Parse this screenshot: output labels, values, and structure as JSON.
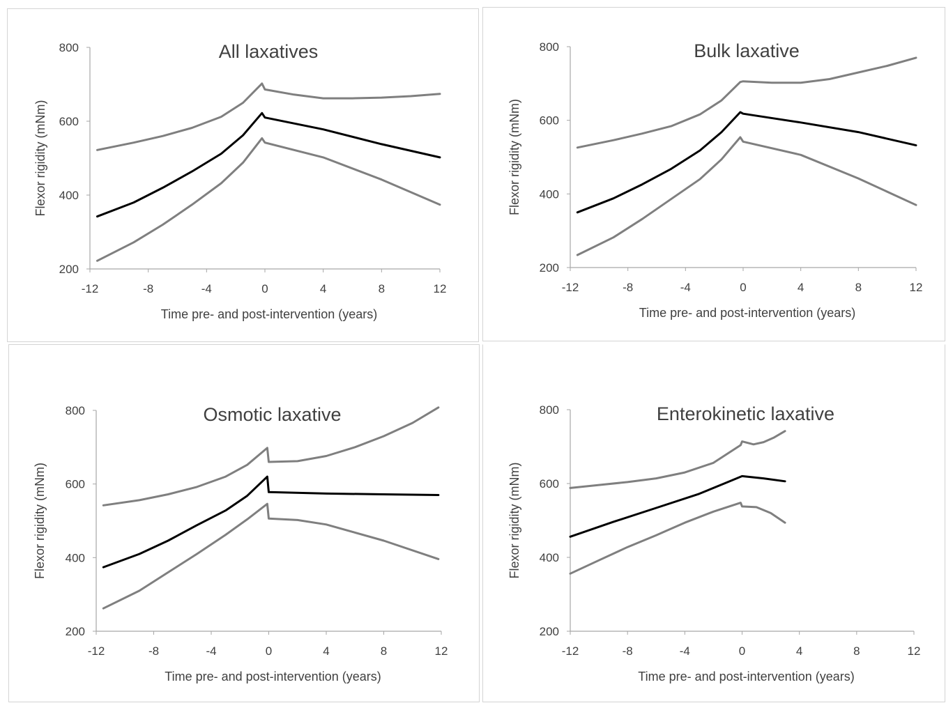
{
  "colors": {
    "mean": "#000000",
    "bounds": "#7f7f7f",
    "axis": "#a6a6a6",
    "text": "#404040"
  },
  "chart_data": [
    {
      "type": "line",
      "title": "All laxatives",
      "xlabel": "Time pre- and post-intervention (years)",
      "ylabel": "Flexor rigidity (mNm)",
      "xlim": [
        -12,
        12
      ],
      "ylim": [
        200,
        800
      ],
      "xticks": [
        "-12",
        "-8",
        "-4",
        "0",
        "4",
        "8",
        "12"
      ],
      "yticks": [
        "200",
        "400",
        "600",
        "800"
      ],
      "grid": false,
      "series": [
        {
          "role": "upper",
          "points": [
            [
              -11.5,
              522
            ],
            [
              -9,
              542
            ],
            [
              -7,
              560
            ],
            [
              -5,
              582
            ],
            [
              -3,
              612
            ],
            [
              -1.5,
              650
            ],
            [
              -0.2,
              702
            ],
            [
              0,
              686
            ],
            [
              2,
              672
            ],
            [
              4,
              662
            ],
            [
              6,
              662
            ],
            [
              8,
              664
            ],
            [
              10,
              668
            ],
            [
              12,
              674
            ]
          ]
        },
        {
          "role": "mean",
          "points": [
            [
              -11.5,
              342
            ],
            [
              -9,
              380
            ],
            [
              -7,
              420
            ],
            [
              -5,
              464
            ],
            [
              -3,
              512
            ],
            [
              -1.5,
              562
            ],
            [
              -0.2,
              622
            ],
            [
              0,
              610
            ],
            [
              4,
              578
            ],
            [
              8,
              538
            ],
            [
              12,
              502
            ]
          ]
        },
        {
          "role": "lower",
          "points": [
            [
              -11.5,
              222
            ],
            [
              -9,
              272
            ],
            [
              -7,
              320
            ],
            [
              -5,
              374
            ],
            [
              -3,
              432
            ],
            [
              -1.5,
              488
            ],
            [
              -0.2,
              554
            ],
            [
              0,
              542
            ],
            [
              4,
              502
            ],
            [
              8,
              442
            ],
            [
              12,
              374
            ]
          ]
        }
      ]
    },
    {
      "type": "line",
      "title": "Bulk laxative",
      "xlabel": "Time pre- and post-intervention (years)",
      "ylabel": "Flexor rigidity (mNm)",
      "xlim": [
        -12,
        12
      ],
      "ylim": [
        200,
        800
      ],
      "xticks": [
        "-12",
        "-8",
        "-4",
        "0",
        "4",
        "8",
        "12"
      ],
      "yticks": [
        "200",
        "400",
        "600",
        "800"
      ],
      "grid": false,
      "series": [
        {
          "role": "upper",
          "points": [
            [
              -11.5,
              526
            ],
            [
              -9,
              546
            ],
            [
              -7,
              564
            ],
            [
              -5,
              584
            ],
            [
              -3,
              616
            ],
            [
              -1.5,
              654
            ],
            [
              -0.2,
              704
            ],
            [
              0,
              706
            ],
            [
              2,
              702
            ],
            [
              4,
              702
            ],
            [
              6,
              712
            ],
            [
              8,
              730
            ],
            [
              10,
              748
            ],
            [
              12,
              770
            ]
          ]
        },
        {
          "role": "mean",
          "points": [
            [
              -11.5,
              350
            ],
            [
              -9,
              388
            ],
            [
              -7,
              426
            ],
            [
              -5,
              468
            ],
            [
              -3,
              518
            ],
            [
              -1.5,
              568
            ],
            [
              -0.2,
              622
            ],
            [
              0,
              618
            ],
            [
              4,
              594
            ],
            [
              8,
              568
            ],
            [
              12,
              532
            ]
          ]
        },
        {
          "role": "lower",
          "points": [
            [
              -11.5,
              234
            ],
            [
              -9,
              282
            ],
            [
              -7,
              332
            ],
            [
              -5,
              386
            ],
            [
              -3,
              440
            ],
            [
              -1.5,
              494
            ],
            [
              -0.2,
              554
            ],
            [
              0,
              542
            ],
            [
              4,
              506
            ],
            [
              8,
              442
            ],
            [
              12,
              370
            ]
          ]
        }
      ]
    },
    {
      "type": "line",
      "title": "Osmotic laxative",
      "xlabel": "Time pre- and post-intervention (years)",
      "ylabel": "Flexor rigidity (mNm)",
      "xlim": [
        -12,
        12
      ],
      "ylim": [
        200,
        800
      ],
      "xticks": [
        "-12",
        "-8",
        "-4",
        "0",
        "4",
        "8",
        "12"
      ],
      "yticks": [
        "200",
        "400",
        "600",
        "800"
      ],
      "grid": false,
      "series": [
        {
          "role": "upper",
          "points": [
            [
              -11.5,
              542
            ],
            [
              -9,
              556
            ],
            [
              -7,
              572
            ],
            [
              -5,
              592
            ],
            [
              -3,
              620
            ],
            [
              -1.5,
              652
            ],
            [
              -0.1,
              698
            ],
            [
              0,
              660
            ],
            [
              2,
              662
            ],
            [
              4,
              676
            ],
            [
              6,
              700
            ],
            [
              8,
              730
            ],
            [
              10,
              766
            ],
            [
              11.8,
              808
            ]
          ]
        },
        {
          "role": "mean",
          "points": [
            [
              -11.5,
              374
            ],
            [
              -9,
              410
            ],
            [
              -7,
              446
            ],
            [
              -5,
              488
            ],
            [
              -3,
              528
            ],
            [
              -1.5,
              568
            ],
            [
              -0.1,
              620
            ],
            [
              0,
              578
            ],
            [
              4,
              574
            ],
            [
              8,
              572
            ],
            [
              11.8,
              570
            ]
          ]
        },
        {
          "role": "lower",
          "points": [
            [
              -11.5,
              262
            ],
            [
              -9,
              310
            ],
            [
              -7,
              360
            ],
            [
              -5,
              410
            ],
            [
              -3,
              462
            ],
            [
              -1.5,
              504
            ],
            [
              -0.1,
              546
            ],
            [
              0,
              506
            ],
            [
              2,
              502
            ],
            [
              4,
              490
            ],
            [
              8,
              446
            ],
            [
              11.8,
              396
            ]
          ]
        }
      ]
    },
    {
      "type": "line",
      "title": "Enterokinetic laxative",
      "xlabel": "Time pre- and post-intervention (years)",
      "ylabel": "Flexor rigidity (mNm)",
      "xlim": [
        -12,
        12
      ],
      "ylim": [
        200,
        800
      ],
      "xticks": [
        "-12",
        "-8",
        "-4",
        "0",
        "4",
        "8",
        "12"
      ],
      "yticks": [
        "200",
        "400",
        "600",
        "800"
      ],
      "grid": false,
      "series": [
        {
          "role": "upper",
          "points": [
            [
              -12,
              588
            ],
            [
              -10,
              596
            ],
            [
              -8,
              604
            ],
            [
              -6,
              614
            ],
            [
              -4,
              630
            ],
            [
              -2,
              656
            ],
            [
              -0.1,
              704
            ],
            [
              0,
              714
            ],
            [
              0.8,
              706
            ],
            [
              1.5,
              712
            ],
            [
              2.2,
              724
            ],
            [
              3,
              742
            ]
          ]
        },
        {
          "role": "mean",
          "points": [
            [
              -12,
              456
            ],
            [
              -9,
              496
            ],
            [
              -6,
              534
            ],
            [
              -3,
              572
            ],
            [
              -1,
              604
            ],
            [
              0,
              620
            ],
            [
              1.5,
              614
            ],
            [
              3,
              606
            ]
          ]
        },
        {
          "role": "lower",
          "points": [
            [
              -12,
              356
            ],
            [
              -10,
              392
            ],
            [
              -8,
              428
            ],
            [
              -6,
              460
            ],
            [
              -4,
              494
            ],
            [
              -2,
              524
            ],
            [
              -0.1,
              548
            ],
            [
              0,
              538
            ],
            [
              1,
              536
            ],
            [
              2,
              520
            ],
            [
              3,
              494
            ]
          ]
        }
      ]
    }
  ]
}
